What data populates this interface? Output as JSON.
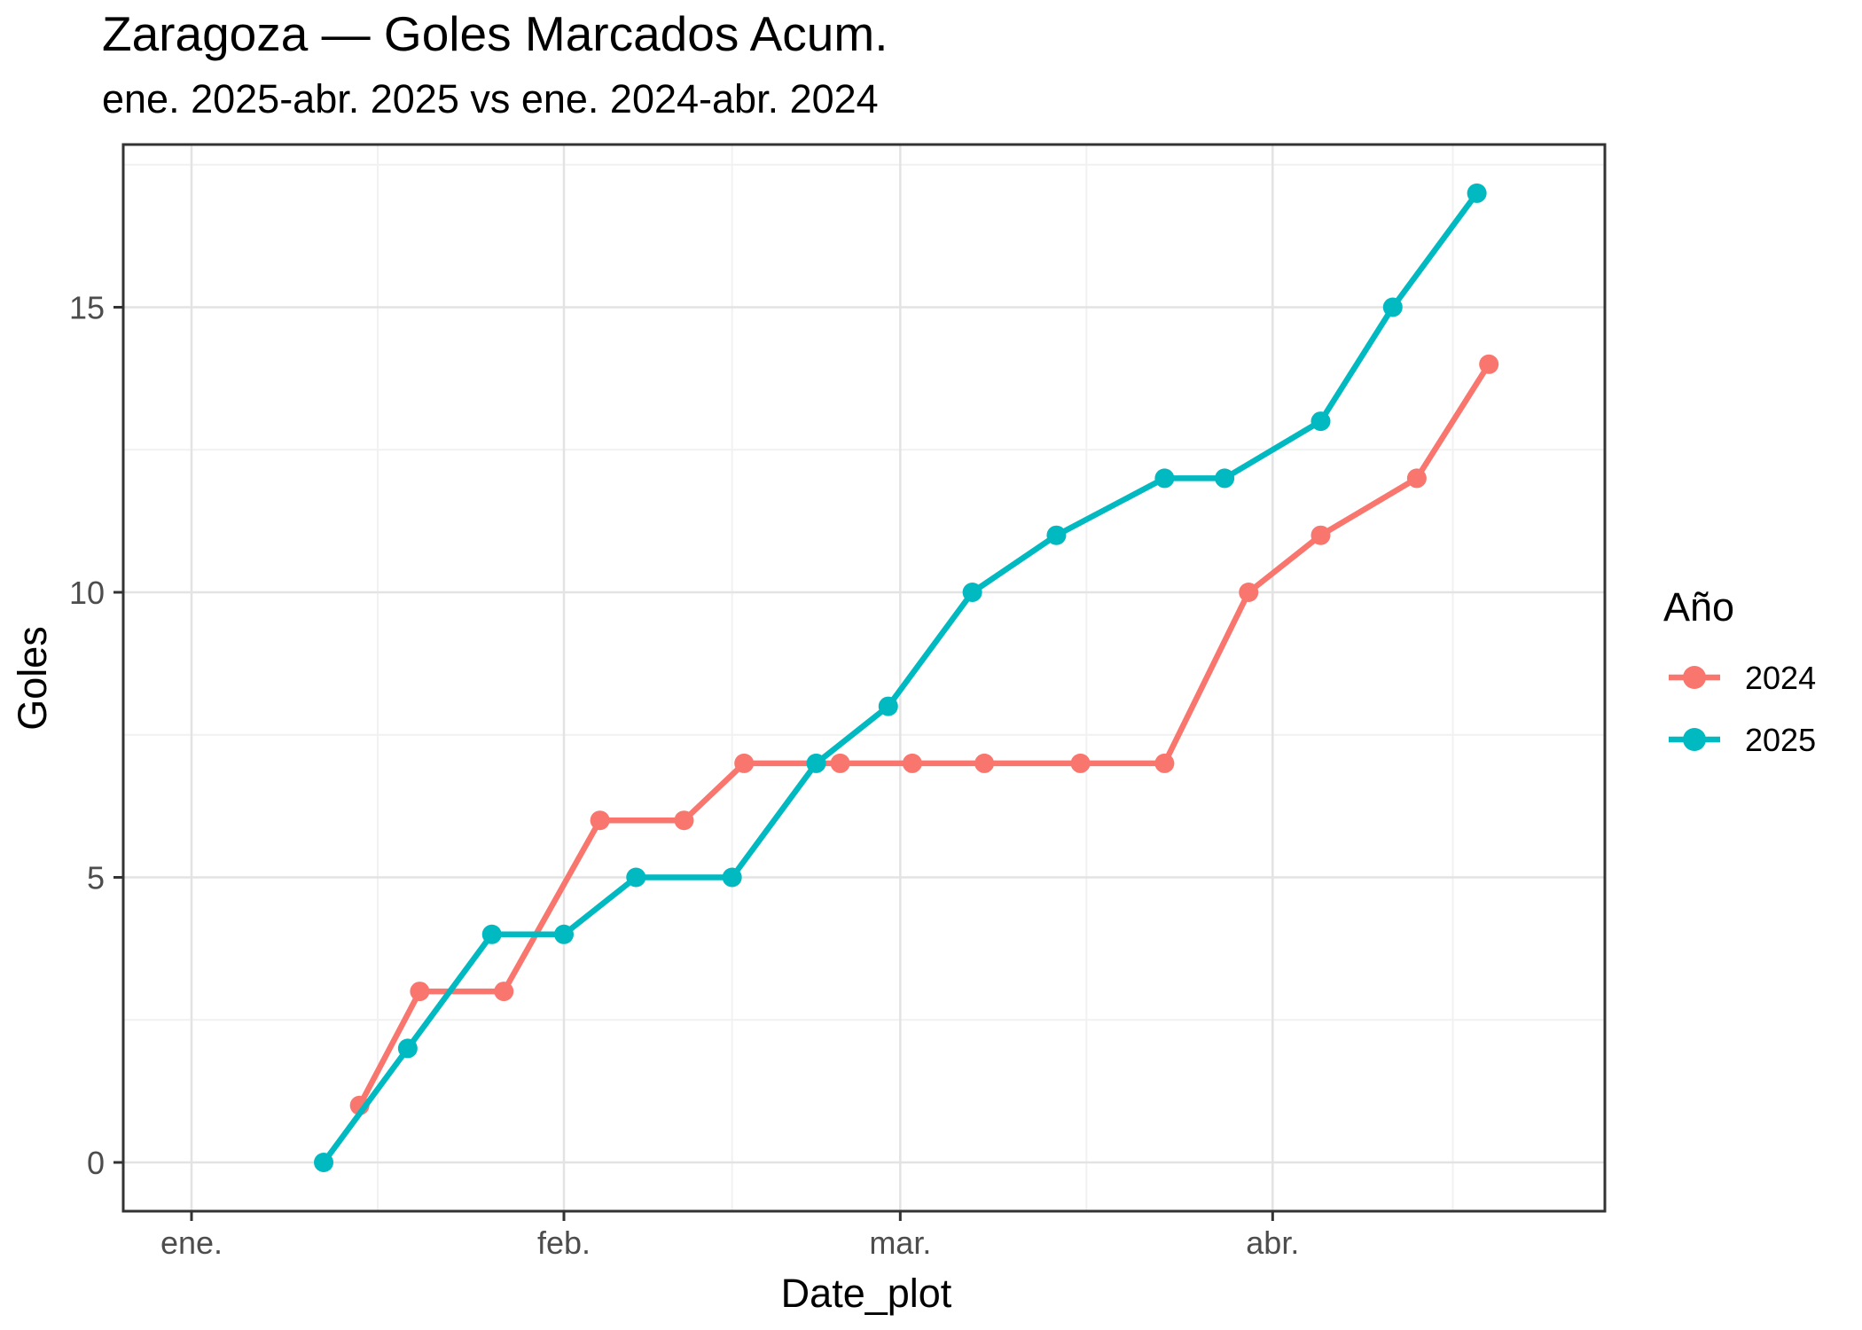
{
  "title": "Zaragoza — Goles Marcados Acum.",
  "subtitle": "ene. 2025-abr. 2025 vs ene. 2024-abr. 2024",
  "x_axis": {
    "label": "Date_plot",
    "tick_labels": [
      "ene.",
      "feb.",
      "mar.",
      "abr."
    ]
  },
  "y_axis": {
    "label": "Goles",
    "tick_labels": [
      "0",
      "5",
      "10",
      "15"
    ]
  },
  "legend": {
    "title": "Año",
    "entries": [
      {
        "label": "2024",
        "color": "#F8766D"
      },
      {
        "label": "2025",
        "color": "#00B9C1"
      }
    ]
  },
  "colors": {
    "series_2024": "#F8766D",
    "series_2025": "#00B9C1",
    "grid_major": "#E3E3E3",
    "grid_minor": "#F1F1F1",
    "panel_border": "#333333",
    "tick_mark": "#333333",
    "tick_label": "#4D4D4D",
    "text": "#000000",
    "background": "#FFFFFF"
  },
  "chart_data": {
    "type": "line",
    "title": "Zaragoza — Goles Marcados Acum.",
    "subtitle": "ene. 2025-abr. 2025 vs ene. 2024-abr. 2024",
    "xlabel": "Date_plot",
    "ylabel": "Goles",
    "x_tick_labels": [
      "ene.",
      "feb.",
      "mar.",
      "abr."
    ],
    "x_tick_dates": [
      "01-01",
      "02-01",
      "03-01",
      "04-01"
    ],
    "y_ticks": [
      0,
      5,
      10,
      15
    ],
    "ylim": [
      0,
      17
    ],
    "grid": true,
    "legend_position": "right",
    "legend_title": "Año",
    "series": [
      {
        "name": "2024",
        "color": "#F8766D",
        "points": [
          {
            "date": "01-15",
            "value": 1
          },
          {
            "date": "01-20",
            "value": 3
          },
          {
            "date": "01-27",
            "value": 3
          },
          {
            "date": "02-04",
            "value": 6
          },
          {
            "date": "02-11",
            "value": 6
          },
          {
            "date": "02-16",
            "value": 7
          },
          {
            "date": "02-24",
            "value": 7
          },
          {
            "date": "03-02",
            "value": 7
          },
          {
            "date": "03-08",
            "value": 7
          },
          {
            "date": "03-16",
            "value": 7
          },
          {
            "date": "03-23",
            "value": 7
          },
          {
            "date": "03-30",
            "value": 10
          },
          {
            "date": "04-05",
            "value": 11
          },
          {
            "date": "04-13",
            "value": 12
          },
          {
            "date": "04-19",
            "value": 14
          }
        ]
      },
      {
        "name": "2025",
        "color": "#00B9C1",
        "points": [
          {
            "date": "01-12",
            "value": 0
          },
          {
            "date": "01-19",
            "value": 2
          },
          {
            "date": "01-26",
            "value": 4
          },
          {
            "date": "02-01",
            "value": 4
          },
          {
            "date": "02-07",
            "value": 5
          },
          {
            "date": "02-15",
            "value": 5
          },
          {
            "date": "02-22",
            "value": 7
          },
          {
            "date": "02-28",
            "value": 8
          },
          {
            "date": "03-07",
            "value": 10
          },
          {
            "date": "03-14",
            "value": 11
          },
          {
            "date": "03-23",
            "value": 12
          },
          {
            "date": "03-28",
            "value": 12
          },
          {
            "date": "04-05",
            "value": 13
          },
          {
            "date": "04-11",
            "value": 15
          },
          {
            "date": "04-18",
            "value": 17
          }
        ]
      }
    ]
  }
}
